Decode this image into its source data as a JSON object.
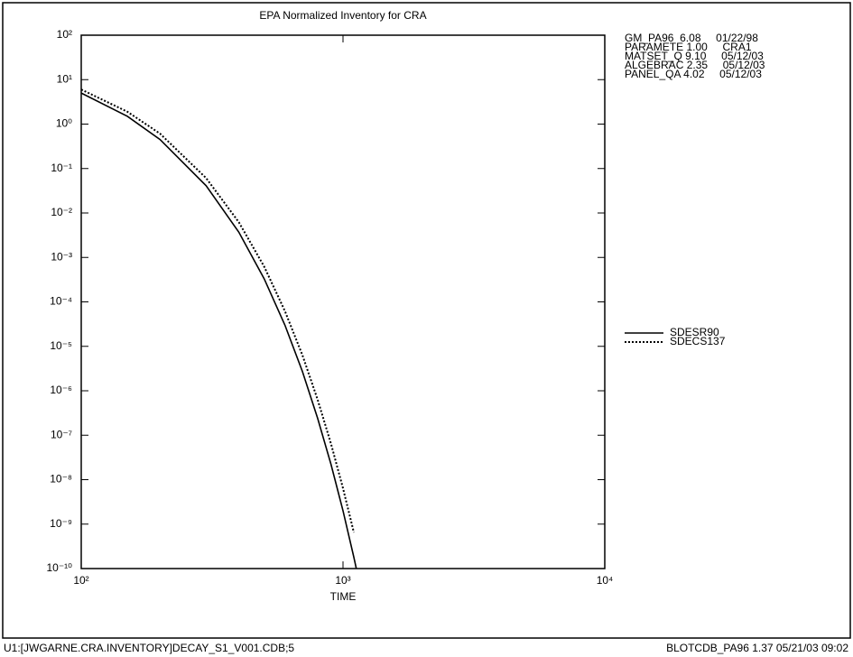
{
  "chart_data": {
    "type": "line",
    "title": "EPA Normalized Inventory for CRA",
    "x_label": "TIME",
    "xscale": "log",
    "yscale": "log",
    "xlim": [
      100,
      10000
    ],
    "xticks": [
      {
        "value": 100,
        "label": "10²"
      },
      {
        "value": 1000,
        "label": "10³"
      },
      {
        "value": 10000,
        "label": "10⁴"
      }
    ],
    "ylim": [
      1e-10,
      100
    ],
    "yticks": [
      {
        "value": 100,
        "label": "10²"
      },
      {
        "value": 10,
        "label": "10¹"
      },
      {
        "value": 1,
        "label": "10⁰"
      },
      {
        "value": 0.1,
        "label": "10⁻¹"
      },
      {
        "value": 0.01,
        "label": "10⁻²"
      },
      {
        "value": 0.001,
        "label": "10⁻³"
      },
      {
        "value": 0.0001,
        "label": "10⁻⁴"
      },
      {
        "value": 1e-05,
        "label": "10⁻⁵"
      },
      {
        "value": 1e-06,
        "label": "10⁻⁶"
      },
      {
        "value": 1e-07,
        "label": "10⁻⁷"
      },
      {
        "value": 1e-08,
        "label": "10⁻⁸"
      },
      {
        "value": 1e-09,
        "label": "10⁻⁹"
      },
      {
        "value": 1e-10,
        "label": "10⁻¹⁰"
      }
    ],
    "x": [
      100,
      150,
      200,
      300,
      400,
      500,
      600,
      700,
      800,
      900,
      1000,
      1100,
      1150,
      1200
    ],
    "series": [
      {
        "name": "SDESR90",
        "color": "#000000",
        "linestyle": "solid",
        "values": [
          5.0,
          1.5,
          0.45,
          0.041,
          0.0037,
          0.00033,
          3e-05,
          2.7e-06,
          2.4e-07,
          2.2e-08,
          2e-09,
          1.8e-10,
          5.4e-11,
          null
        ]
      },
      {
        "name": "SDECS137",
        "color": "#000000",
        "linestyle": "dotted",
        "values": [
          6.0,
          1.9,
          0.61,
          0.061,
          0.0062,
          0.00062,
          6.2e-05,
          6.3e-06,
          6.3e-07,
          6.4e-08,
          6.4e-09,
          6.5e-10,
          null,
          6.5e-11
        ]
      }
    ],
    "version_info": [
      "GM_PA96  6.08     01/22/98",
      "PARAMETE 1.00     CRA1",
      "MATSET_Q 9.10     05/12/03",
      "ALGEBRAC 2.35     05/12/03",
      "PANEL_QA 4.02     05/12/03"
    ],
    "footer_left": "U1:[JWGARNE.CRA.INVENTORY]DECAY_S1_V001.CDB;5",
    "footer_right": "BLOTCDB_PA96 1.37 05/21/03 09:02"
  }
}
